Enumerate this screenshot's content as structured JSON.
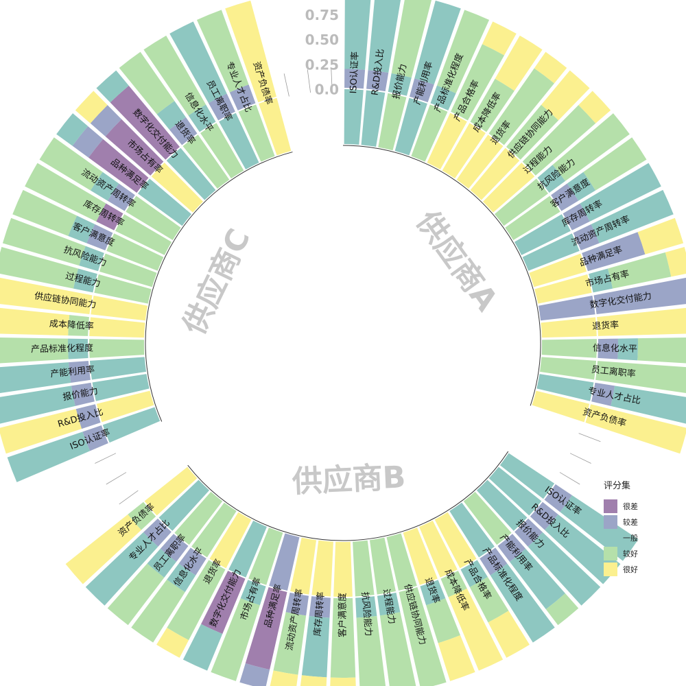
{
  "chart_data": {
    "type": "stacked-polar-bar",
    "y_ticks": [
      "0.0",
      "0.25",
      "0.50",
      "0.75",
      "1.00"
    ],
    "ylim": [
      0,
      1
    ],
    "legend": {
      "title": "评分集",
      "position": "right",
      "levels": [
        "很差",
        "较差",
        "一般",
        "较好",
        "很好"
      ],
      "colors": [
        "#a07fad",
        "#9ba5c7",
        "#8ec7c1",
        "#b5e0aa",
        "#fbf08f"
      ]
    },
    "groups": [
      {
        "name": "供应商A",
        "items": [
          {
            "label": "ISO认证率",
            "shares": [
              0,
              0.19,
              0.81,
              0,
              0
            ]
          },
          {
            "label": "R&D投入比",
            "shares": [
              0,
              0.19,
              0.81,
              0,
              0
            ]
          },
          {
            "label": "报价能力",
            "shares": [
              0,
              0,
              0.19,
              0.81,
              0
            ]
          },
          {
            "label": "产能利用率",
            "shares": [
              0,
              0.19,
              0.81,
              0,
              0
            ]
          },
          {
            "label": "产品标准化程度",
            "shares": [
              0,
              0,
              0.19,
              0.81,
              0
            ]
          },
          {
            "label": "产品合格率",
            "shares": [
              0,
              0,
              0,
              0.75,
              0.25
            ]
          },
          {
            "label": "成本降低率",
            "shares": [
              0,
              0,
              0,
              0.5,
              0.5
            ]
          },
          {
            "label": "退货率",
            "shares": [
              0,
              0,
              0,
              0.8,
              0.2
            ]
          },
          {
            "label": "供应链协同能力",
            "shares": [
              0,
              0,
              0,
              0.55,
              0.45
            ]
          },
          {
            "label": "过程能力",
            "shares": [
              0,
              0,
              0,
              0.8,
              0.2
            ]
          },
          {
            "label": "抗风险能力",
            "shares": [
              0,
              0,
              0.2,
              0.8,
              0
            ]
          },
          {
            "label": "客户满意度",
            "shares": [
              0,
              0.2,
              0.2,
              0.6,
              0
            ]
          },
          {
            "label": "库存周转率",
            "shares": [
              0,
              0.2,
              0.8,
              0,
              0
            ]
          },
          {
            "label": "流动资产周转率",
            "shares": [
              0,
              0.2,
              0.8,
              0,
              0
            ]
          },
          {
            "label": "品种满足率",
            "shares": [
              0,
              0.6,
              0,
              0,
              0.4
            ]
          },
          {
            "label": "市场占有率",
            "shares": [
              0,
              0,
              0.2,
              0.6,
              0.2
            ]
          },
          {
            "label": "数字化交付能力",
            "shares": [
              0,
              1,
              0,
              0,
              0
            ]
          },
          {
            "label": "退货率",
            "shares": [
              0,
              0,
              0,
              0,
              1
            ]
          },
          {
            "label": "信息化水平",
            "shares": [
              0,
              0.2,
              0.2,
              0.6,
              0
            ]
          },
          {
            "label": "员工离职率",
            "shares": [
              0,
              0,
              0,
              1,
              0
            ]
          },
          {
            "label": "专业人才占比",
            "shares": [
              0,
              0.2,
              0.8,
              0,
              0
            ]
          },
          {
            "label": "资产负债率",
            "shares": [
              0,
              0,
              0,
              0,
              1
            ]
          }
        ]
      },
      {
        "name": "供应商B",
        "items": [
          {
            "label": "ISO认证率",
            "shares": [
              0,
              0.2,
              0.8,
              0,
              0
            ]
          },
          {
            "label": "R&D投入比",
            "shares": [
              0,
              0.2,
              0.8,
              0,
              0
            ]
          },
          {
            "label": "报价能力",
            "shares": [
              0,
              0.2,
              0.8,
              0,
              0
            ]
          },
          {
            "label": "产能利用率",
            "shares": [
              0,
              0.2,
              0.6,
              0.2,
              0
            ]
          },
          {
            "label": "产品标准化程度",
            "shares": [
              0,
              0.2,
              0.8,
              0,
              0
            ]
          },
          {
            "label": "产品合格率",
            "shares": [
              0,
              0,
              0.2,
              0.4,
              0.4
            ]
          },
          {
            "label": "成本降低率",
            "shares": [
              0,
              0,
              0,
              0.2,
              0.8
            ]
          },
          {
            "label": "退货率",
            "shares": [
              0,
              0,
              0.2,
              0.4,
              0.4
            ]
          },
          {
            "label": "供应链协同能力",
            "shares": [
              0,
              0,
              0,
              1,
              0
            ]
          },
          {
            "label": "过程能力",
            "shares": [
              0,
              0,
              0.2,
              0.8,
              0
            ]
          },
          {
            "label": "抗风险能力",
            "shares": [
              0,
              0,
              0.2,
              0.8,
              0
            ]
          },
          {
            "label": "客户满意度",
            "shares": [
              0,
              0,
              0,
              0.8,
              0.2
            ]
          },
          {
            "label": "库存周转率",
            "shares": [
              0,
              0.2,
              0.6,
              0,
              0.2
            ]
          },
          {
            "label": "流动资产周转率",
            "shares": [
              0,
              0.2,
              0,
              0.6,
              0.2
            ]
          },
          {
            "label": "品种满足率",
            "shares": [
              0.8,
              0.2,
              0,
              0,
              0
            ]
          },
          {
            "label": "市场占有率",
            "shares": [
              0,
              0,
              0.2,
              0.8,
              0
            ]
          },
          {
            "label": "数字化交付能力",
            "shares": [
              0.6,
              0,
              0.4,
              0,
              0
            ]
          },
          {
            "label": "退货率",
            "shares": [
              0,
              0,
              0,
              0.8,
              0.2
            ]
          },
          {
            "label": "信息化水平",
            "shares": [
              0,
              0.2,
              0.2,
              0.6,
              0
            ]
          },
          {
            "label": "员工离职率",
            "shares": [
              0,
              0.2,
              0.2,
              0.6,
              0
            ]
          },
          {
            "label": "专业人才占比",
            "shares": [
              0,
              0.2,
              0.8,
              0,
              0
            ]
          },
          {
            "label": "资产负债率",
            "shares": [
              0,
              0,
              0,
              0.2,
              0.8
            ]
          }
        ]
      },
      {
        "name": "供应商C",
        "items": [
          {
            "label": "ISO认证率",
            "shares": [
              0,
              0.2,
              0.8,
              0,
              0
            ]
          },
          {
            "label": "R&D投入比",
            "shares": [
              0,
              0.2,
              0,
              0,
              0.8
            ]
          },
          {
            "label": "报价能力",
            "shares": [
              0,
              0.2,
              0.8,
              0,
              0
            ]
          },
          {
            "label": "产能利用率",
            "shares": [
              0,
              0.2,
              0.8,
              0,
              0
            ]
          },
          {
            "label": "产品标准化程度",
            "shares": [
              0,
              0,
              0.2,
              0.8,
              0
            ]
          },
          {
            "label": "成本降低率",
            "shares": [
              0,
              0,
              0,
              0.2,
              0.8
            ]
          },
          {
            "label": "供应链协同能力",
            "shares": [
              0,
              0,
              0,
              0,
              1
            ]
          },
          {
            "label": "过程能力",
            "shares": [
              0,
              0,
              0.2,
              0.8,
              0
            ]
          },
          {
            "label": "抗风险能力",
            "shares": [
              0,
              0,
              0.2,
              0.8,
              0
            ]
          },
          {
            "label": "客户满意度",
            "shares": [
              0,
              0.2,
              0.2,
              0.6,
              0
            ]
          },
          {
            "label": "库存周转率",
            "shares": [
              0.2,
              0,
              0,
              0.8,
              0
            ]
          },
          {
            "label": "流动资产周转率",
            "shares": [
              0,
              0.2,
              0.2,
              0.6,
              0
            ]
          },
          {
            "label": "品种满足率",
            "shares": [
              0.6,
              0.2,
              0.2,
              0,
              0
            ]
          },
          {
            "label": "市场占有率",
            "shares": [
              0.6,
              0.2,
              0,
              0,
              0.2
            ]
          },
          {
            "label": "数字化交付能力",
            "shares": [
              0.8,
              0,
              0.2,
              0,
              0
            ]
          },
          {
            "label": "退货率",
            "shares": [
              0,
              0.2,
              0.2,
              0.6,
              0
            ]
          },
          {
            "label": "信息化水平",
            "shares": [
              0,
              0,
              0.2,
              0.8,
              0
            ]
          },
          {
            "label": "员工离职率",
            "shares": [
              0,
              0.2,
              0.8,
              0,
              0
            ]
          },
          {
            "label": "专业人才占比",
            "shares": [
              0,
              0.2,
              0,
              0.8,
              0
            ]
          },
          {
            "label": "资产负债率",
            "shares": [
              0,
              0,
              0,
              0,
              1
            ]
          }
        ]
      }
    ]
  }
}
